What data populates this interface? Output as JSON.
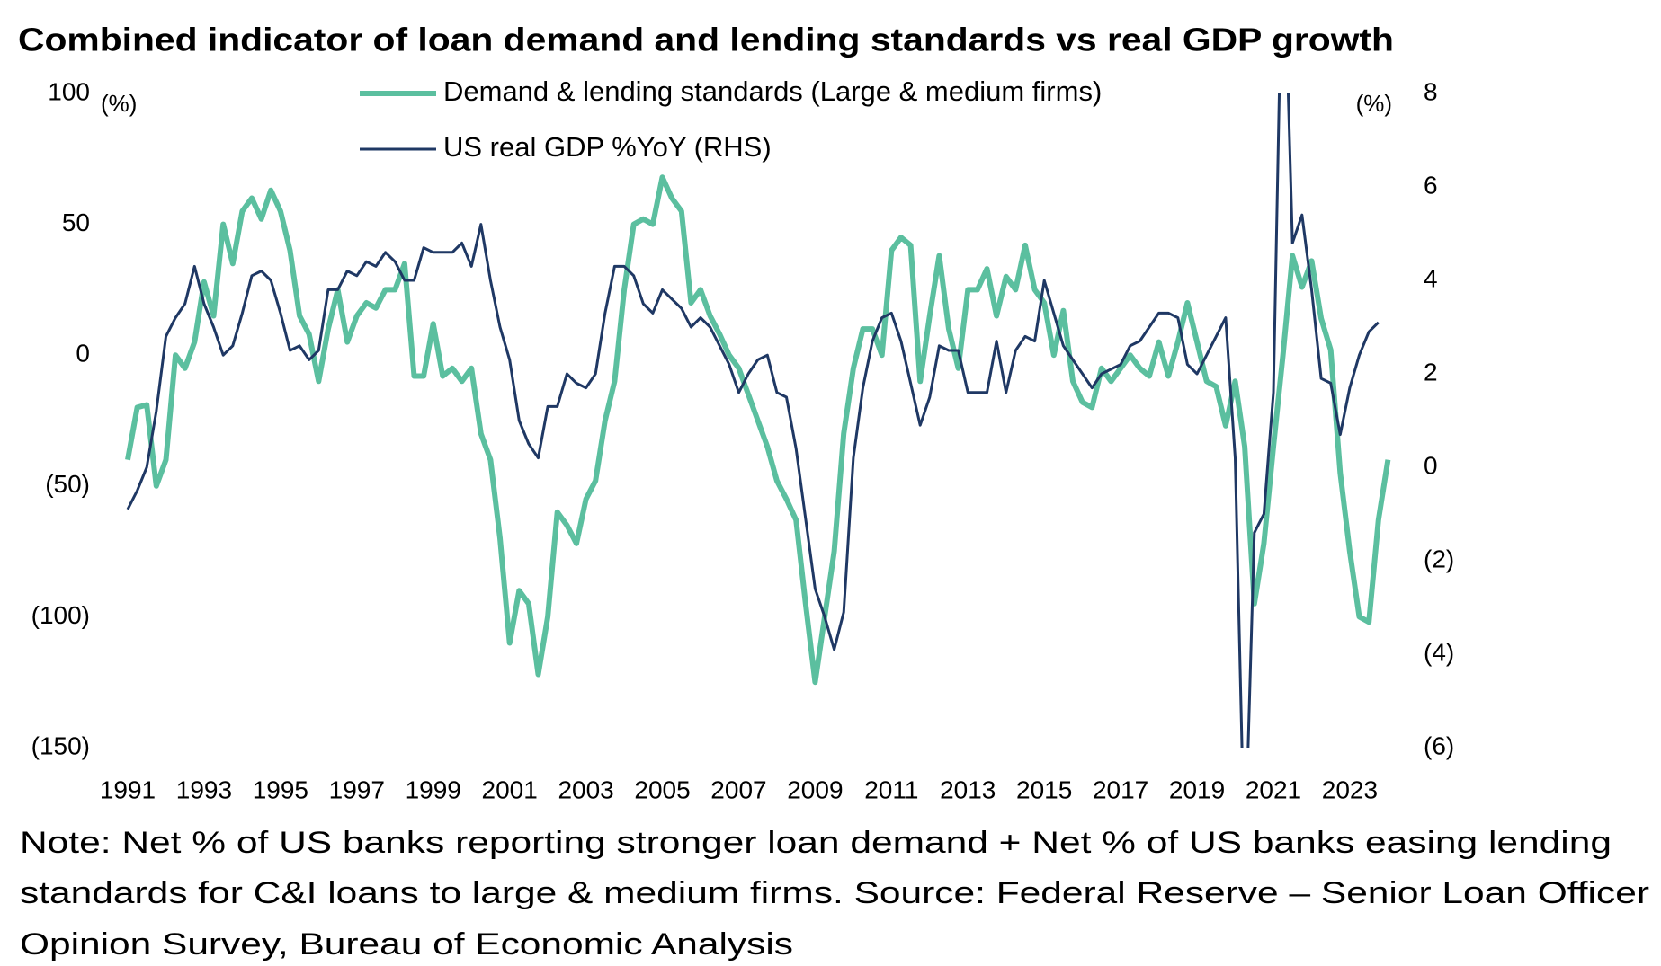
{
  "chart_data": {
    "type": "line",
    "title": "Combined indicator of loan demand and lending standards vs real GDP growth",
    "y_unit": "(%)",
    "y2_unit": "(%)",
    "note": [
      "Note: Net % of US banks reporting stronger loan demand + Net % of US banks easing lending",
      "standards for C&I loans to large & medium firms. Source: Federal Reserve – Senior Loan Officer",
      "Opinion Survey, Bureau of Economic Analysis"
    ],
    "x": [
      1991,
      1991.25,
      1991.5,
      1991.75,
      1992,
      1992.25,
      1992.5,
      1992.75,
      1993,
      1993.25,
      1993.5,
      1993.75,
      1994,
      1994.25,
      1994.5,
      1994.75,
      1995,
      1995.25,
      1995.5,
      1995.75,
      1996,
      1996.25,
      1996.5,
      1996.75,
      1997,
      1997.25,
      1997.5,
      1997.75,
      1998,
      1998.25,
      1998.5,
      1998.75,
      1999,
      1999.25,
      1999.5,
      1999.75,
      2000,
      2000.25,
      2000.5,
      2000.75,
      2001,
      2001.25,
      2001.5,
      2001.75,
      2002,
      2002.25,
      2002.5,
      2002.75,
      2003,
      2003.25,
      2003.5,
      2003.75,
      2004,
      2004.25,
      2004.5,
      2004.75,
      2005,
      2005.25,
      2005.5,
      2005.75,
      2006,
      2006.25,
      2006.5,
      2006.75,
      2007,
      2007.25,
      2007.5,
      2007.75,
      2008,
      2008.25,
      2008.5,
      2008.75,
      2009,
      2009.25,
      2009.5,
      2009.75,
      2010,
      2010.25,
      2010.5,
      2010.75,
      2011,
      2011.25,
      2011.5,
      2011.75,
      2012,
      2012.25,
      2012.5,
      2012.75,
      2013,
      2013.25,
      2013.5,
      2013.75,
      2014,
      2014.25,
      2014.5,
      2014.75,
      2015,
      2015.25,
      2015.5,
      2015.75,
      2016,
      2016.25,
      2016.5,
      2016.75,
      2017,
      2017.25,
      2017.5,
      2017.75,
      2018,
      2018.25,
      2018.5,
      2018.75,
      2019,
      2019.25,
      2019.5,
      2019.75,
      2020,
      2020.25,
      2020.5,
      2020.75,
      2021,
      2021.25,
      2021.5,
      2021.75,
      2022,
      2022.25,
      2022.5,
      2022.75,
      2023,
      2023.25,
      2023.5,
      2023.75,
      2024
    ],
    "xlim": [
      1991,
      2024.25
    ],
    "xticks": [
      1991,
      1993,
      1995,
      1997,
      1999,
      2001,
      2003,
      2005,
      2007,
      2009,
      2011,
      2013,
      2015,
      2017,
      2019,
      2021,
      2023
    ],
    "ylim": [
      -150,
      100
    ],
    "yticks": [
      100,
      50,
      0,
      {
        "value": -50,
        "label": "(50)"
      },
      {
        "value": -100,
        "label": "(100)"
      },
      {
        "value": -150,
        "label": "(150)"
      }
    ],
    "y2lim": [
      -6,
      8
    ],
    "y2ticks": [
      8,
      6,
      4,
      2,
      0,
      {
        "value": -2,
        "label": "(2)"
      },
      {
        "value": -4,
        "label": "(4)"
      },
      {
        "value": -6,
        "label": "(6)"
      }
    ],
    "grid": false,
    "legend": "top",
    "series": [
      {
        "name": "Demand & lending standards (Large & medium firms)",
        "color": "#5bbf9f",
        "axis": "y",
        "values": [
          -40,
          -20,
          -19,
          -50,
          -40,
          0,
          -5,
          5,
          28,
          15,
          50,
          35,
          55,
          60,
          52,
          63,
          55,
          40,
          15,
          8,
          -10,
          10,
          25,
          5,
          15,
          20,
          18,
          25,
          25,
          35,
          -8,
          -8,
          12,
          -8,
          -5,
          -10,
          -5,
          -30,
          -40,
          -70,
          -110,
          -90,
          -95,
          -122,
          -100,
          -60,
          -65,
          -72,
          -55,
          -48,
          -25,
          -10,
          25,
          50,
          52,
          50,
          68,
          60,
          55,
          20,
          25,
          15,
          8,
          0,
          -5,
          -15,
          -25,
          -35,
          -48,
          -55,
          -63,
          -95,
          -125,
          -100,
          -75,
          -30,
          -5,
          10,
          10,
          0,
          40,
          45,
          42,
          -10,
          15,
          38,
          10,
          -5,
          25,
          25,
          33,
          15,
          30,
          25,
          42,
          25,
          20,
          0,
          17,
          -10,
          -18,
          -20,
          -5,
          -10,
          -5,
          0,
          -5,
          -8,
          5,
          -8,
          5,
          20,
          5,
          -10,
          -12,
          -27,
          -10,
          -35,
          -95,
          -72,
          -35,
          0,
          38,
          26,
          36,
          14,
          2,
          -45,
          -75,
          -100,
          -102,
          -63,
          -40
        ]
      },
      {
        "name": "US real GDP %YoY (RHS)",
        "color": "#1f3864",
        "axis": "y2",
        "values": [
          -0.9,
          -0.5,
          0.0,
          1.2,
          2.8,
          3.2,
          3.5,
          4.3,
          3.5,
          3.0,
          2.4,
          2.6,
          3.3,
          4.1,
          4.2,
          4.0,
          3.3,
          2.5,
          2.6,
          2.3,
          2.5,
          3.8,
          3.8,
          4.2,
          4.1,
          4.4,
          4.3,
          4.6,
          4.4,
          4.0,
          4.0,
          4.7,
          4.6,
          4.6,
          4.6,
          4.8,
          4.3,
          5.2,
          4.0,
          3.0,
          2.3,
          1.0,
          0.5,
          0.2,
          1.3,
          1.3,
          2.0,
          1.8,
          1.7,
          2.0,
          3.3,
          4.3,
          4.3,
          4.1,
          3.5,
          3.3,
          3.8,
          3.6,
          3.4,
          3.0,
          3.2,
          3.0,
          2.6,
          2.2,
          1.6,
          2.0,
          2.3,
          2.4,
          1.6,
          1.5,
          0.4,
          -1.1,
          -2.6,
          -3.2,
          -3.9,
          -3.1,
          0.2,
          1.7,
          2.7,
          3.2,
          3.3,
          2.7,
          1.8,
          0.9,
          1.5,
          2.6,
          2.5,
          2.5,
          1.6,
          1.6,
          1.6,
          2.7,
          1.6,
          2.5,
          2.8,
          2.7,
          4.0,
          3.3,
          2.6,
          2.3,
          2.0,
          1.7,
          2.0,
          2.1,
          2.2,
          2.6,
          2.7,
          3.0,
          3.3,
          3.3,
          3.2,
          2.2,
          2.0,
          2.4,
          2.8,
          3.2,
          0.2,
          -8.5,
          -1.4,
          -1.0,
          1.6,
          12.0,
          4.8,
          5.4,
          3.8,
          1.9,
          1.8,
          0.7,
          1.7,
          2.4,
          2.9,
          3.1,
          null
        ]
      }
    ]
  }
}
